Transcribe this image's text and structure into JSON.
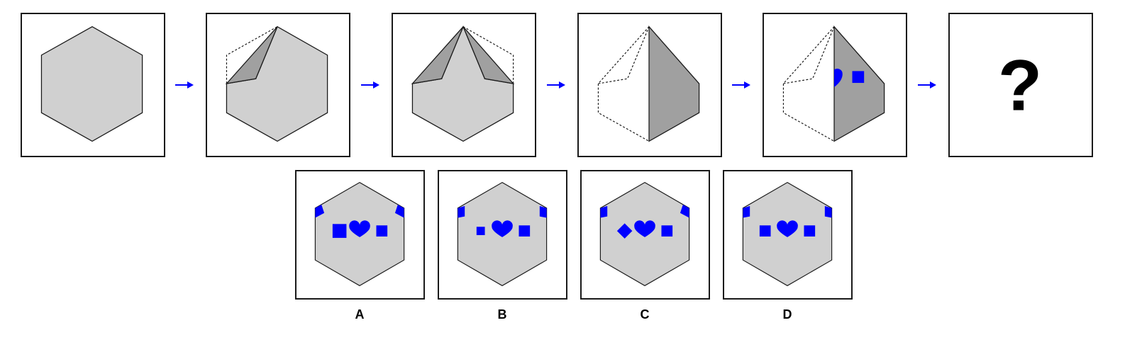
{
  "question_mark": "?",
  "options": [
    {
      "label": "A"
    },
    {
      "label": "B"
    },
    {
      "label": "C"
    },
    {
      "label": "D"
    }
  ],
  "colors": {
    "hex_fill": "#d0d0d0",
    "fold_fill": "#a0a0a0",
    "shape_blue": "#0000ff",
    "outline": "#1a1a1a",
    "arrow": "#0000ff"
  }
}
